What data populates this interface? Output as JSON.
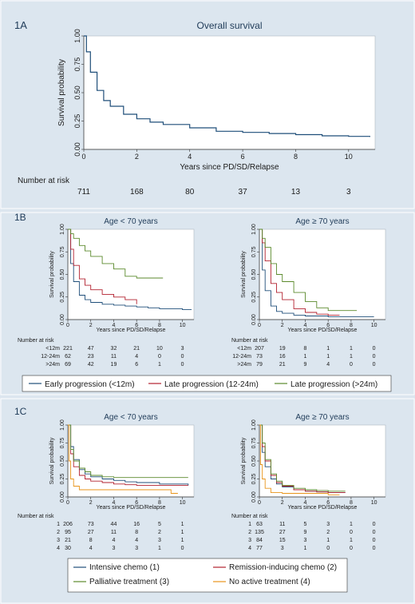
{
  "chart_data": [
    {
      "panel": "1A",
      "type": "line",
      "title": "Overall survival",
      "xlabel": "Years since PD/SD/Relapse",
      "ylabel": "Survival probability",
      "xlim": [
        0,
        11
      ],
      "ylim": [
        0,
        1
      ],
      "xticks": [
        "0",
        "2",
        "4",
        "6",
        "8",
        "10"
      ],
      "yticks": [
        "0.00",
        "0.25",
        "0.50",
        "0.75",
        "1.00"
      ],
      "series": [
        {
          "color": "#1f4e79",
          "x": [
            0,
            0.1,
            0.25,
            0.5,
            0.75,
            1,
            1.5,
            2,
            2.5,
            3,
            4,
            5,
            6,
            7,
            8,
            9,
            10,
            10.8
          ],
          "y": [
            1.0,
            0.86,
            0.68,
            0.52,
            0.43,
            0.38,
            0.31,
            0.27,
            0.24,
            0.22,
            0.19,
            0.16,
            0.15,
            0.14,
            0.13,
            0.12,
            0.115,
            0.11
          ]
        }
      ],
      "risk_table": {
        "label": "Number at risk",
        "rows": [
          {
            "name": "",
            "values": [
              "711",
              "168",
              "80",
              "37",
              "13",
              "3"
            ]
          }
        ]
      }
    },
    {
      "panel": "1B",
      "type": "line",
      "title": "Age < 70 years",
      "xlabel": "Years since PD/SD/Relapse",
      "ylabel": "Survival probability",
      "xlim": [
        0,
        11
      ],
      "ylim": [
        0,
        1
      ],
      "xticks": [
        "0",
        "2",
        "4",
        "6",
        "8",
        "10"
      ],
      "yticks": [
        "0.00",
        "0.25",
        "0.50",
        "0.75",
        "1.00"
      ],
      "series": [
        {
          "color": "#1f4e79",
          "x": [
            0,
            0.25,
            0.5,
            1,
            1.5,
            2,
            3,
            4,
            5,
            6,
            7,
            8,
            9,
            10,
            10.8
          ],
          "y": [
            1.0,
            0.62,
            0.42,
            0.27,
            0.22,
            0.19,
            0.17,
            0.16,
            0.15,
            0.14,
            0.13,
            0.12,
            0.12,
            0.11,
            0.11
          ]
        },
        {
          "color": "#b2202f",
          "x": [
            0,
            0.25,
            0.5,
            1,
            1.5,
            2,
            3,
            4,
            5,
            6
          ],
          "y": [
            1.0,
            0.78,
            0.6,
            0.45,
            0.38,
            0.33,
            0.28,
            0.25,
            0.22,
            0.17
          ]
        },
        {
          "color": "#5b8a2c",
          "x": [
            0,
            0.25,
            0.5,
            1,
            1.5,
            2,
            3,
            4,
            5,
            6,
            7,
            8.3
          ],
          "y": [
            1.0,
            0.95,
            0.9,
            0.82,
            0.76,
            0.7,
            0.62,
            0.56,
            0.48,
            0.46,
            0.46,
            0.46
          ]
        }
      ],
      "risk_table": {
        "label": "Number at risk",
        "rows": [
          {
            "name": "<12m",
            "values": [
              "221",
              "47",
              "32",
              "21",
              "10",
              "3"
            ]
          },
          {
            "name": "12-24m",
            "values": [
              "62",
              "23",
              "11",
              "4",
              "0",
              "0"
            ]
          },
          {
            "name": ">24m",
            "values": [
              "69",
              "42",
              "19",
              "6",
              "1",
              "0"
            ]
          }
        ]
      }
    },
    {
      "panel": "1B",
      "type": "line",
      "title": "Age ≥ 70 years",
      "xlabel": "Years since PD/SD/Relapse",
      "ylabel": "Survival probability",
      "xlim": [
        0,
        11
      ],
      "ylim": [
        0,
        1
      ],
      "xticks": [
        "0",
        "2",
        "4",
        "6",
        "8",
        "10"
      ],
      "yticks": [
        "0.00",
        "0.25",
        "0.50",
        "0.75",
        "1.00"
      ],
      "series": [
        {
          "color": "#1f4e79",
          "x": [
            0,
            0.25,
            0.5,
            1,
            1.5,
            2,
            3,
            4,
            5,
            6,
            8,
            10
          ],
          "y": [
            1.0,
            0.55,
            0.32,
            0.15,
            0.09,
            0.07,
            0.05,
            0.04,
            0.04,
            0.03,
            0.03,
            0.03
          ]
        },
        {
          "color": "#b2202f",
          "x": [
            0,
            0.25,
            0.5,
            1,
            1.5,
            2,
            3,
            4,
            5,
            6,
            7
          ],
          "y": [
            1.0,
            0.85,
            0.65,
            0.4,
            0.3,
            0.22,
            0.12,
            0.08,
            0.06,
            0.05,
            0.05
          ]
        },
        {
          "color": "#5b8a2c",
          "x": [
            0,
            0.25,
            0.5,
            1,
            1.5,
            2,
            3,
            4,
            5,
            6,
            7,
            8.5
          ],
          "y": [
            1.0,
            0.9,
            0.8,
            0.62,
            0.5,
            0.42,
            0.3,
            0.2,
            0.13,
            0.1,
            0.1,
            0.1
          ]
        }
      ],
      "risk_table": {
        "label": "Number at risk",
        "rows": [
          {
            "name": "<12m",
            "values": [
              "207",
              "19",
              "8",
              "1",
              "1",
              "0"
            ]
          },
          {
            "name": "12-24m",
            "values": [
              "73",
              "16",
              "1",
              "1",
              "1",
              "0"
            ]
          },
          {
            "name": ">24m",
            "values": [
              "79",
              "21",
              "9",
              "4",
              "0",
              "0"
            ]
          }
        ]
      }
    },
    {
      "panel": "1C",
      "type": "line",
      "title": "Age < 70 years",
      "xlabel": "Years since PD/SD/Relapse",
      "ylabel": "Survival probability",
      "xlim": [
        0,
        11
      ],
      "ylim": [
        0,
        1
      ],
      "xticks": [
        "0",
        "2",
        "4",
        "6",
        "8",
        "10"
      ],
      "yticks": [
        "0.00",
        "0.25",
        "0.50",
        "0.75",
        "1.00"
      ],
      "series": [
        {
          "color": "#1f4e79",
          "x": [
            0,
            0.25,
            0.5,
            1,
            1.5,
            2,
            3,
            4,
            5,
            6,
            8,
            10.5
          ],
          "y": [
            1.0,
            0.7,
            0.52,
            0.38,
            0.32,
            0.28,
            0.25,
            0.23,
            0.21,
            0.2,
            0.18,
            0.16
          ]
        },
        {
          "color": "#b2202f",
          "x": [
            0,
            0.25,
            0.5,
            1,
            1.5,
            2,
            3,
            4,
            5,
            6,
            8,
            10.5
          ],
          "y": [
            1.0,
            0.6,
            0.42,
            0.3,
            0.25,
            0.22,
            0.2,
            0.18,
            0.17,
            0.16,
            0.16,
            0.16
          ]
        },
        {
          "color": "#5b8a2c",
          "x": [
            0,
            0.25,
            0.5,
            1,
            1.5,
            2,
            3,
            4,
            5,
            6,
            8,
            10.5
          ],
          "y": [
            1.0,
            0.66,
            0.5,
            0.4,
            0.35,
            0.3,
            0.28,
            0.27,
            0.27,
            0.27,
            0.27,
            0.27
          ]
        },
        {
          "color": "#e8941a",
          "x": [
            0,
            0.1,
            0.25,
            0.5,
            1,
            2,
            4,
            6,
            8,
            9,
            9.6
          ],
          "y": [
            1.0,
            0.5,
            0.25,
            0.15,
            0.1,
            0.1,
            0.1,
            0.1,
            0.1,
            0.05,
            0.05
          ]
        }
      ],
      "risk_table": {
        "label": "Number at risk",
        "rows": [
          {
            "name": "1",
            "values": [
              "206",
              "73",
              "44",
              "16",
              "5",
              "1"
            ]
          },
          {
            "name": "2",
            "values": [
              "95",
              "27",
              "11",
              "8",
              "2",
              "1"
            ]
          },
          {
            "name": "3",
            "values": [
              "21",
              "8",
              "4",
              "4",
              "3",
              "1"
            ]
          },
          {
            "name": "4",
            "values": [
              "30",
              "4",
              "3",
              "3",
              "1",
              "0"
            ]
          }
        ]
      }
    },
    {
      "panel": "1C",
      "type": "line",
      "title": "Age ≥ 70 years",
      "xlabel": "Years since PD/SD/Relapse",
      "ylabel": "Survival probability",
      "xlim": [
        0,
        11
      ],
      "ylim": [
        0,
        1
      ],
      "xticks": [
        "0",
        "2",
        "4",
        "6",
        "8",
        "10"
      ],
      "yticks": [
        "0.00",
        "0.25",
        "0.50",
        "0.75",
        "1.00"
      ],
      "series": [
        {
          "color": "#1f4e79",
          "x": [
            0,
            0.25,
            0.5,
            1,
            1.5,
            2,
            3,
            4,
            5,
            6,
            7.5
          ],
          "y": [
            1.0,
            0.62,
            0.42,
            0.25,
            0.18,
            0.14,
            0.1,
            0.08,
            0.07,
            0.06,
            0.06
          ]
        },
        {
          "color": "#b2202f",
          "x": [
            0,
            0.25,
            0.5,
            1,
            1.5,
            2,
            3,
            4,
            5,
            6,
            7.5
          ],
          "y": [
            1.0,
            0.7,
            0.5,
            0.3,
            0.2,
            0.15,
            0.1,
            0.08,
            0.07,
            0.06,
            0.06
          ]
        },
        {
          "color": "#5b8a2c",
          "x": [
            0,
            0.25,
            0.5,
            1,
            1.5,
            2,
            3,
            4,
            5,
            6,
            7.5
          ],
          "y": [
            1.0,
            0.75,
            0.52,
            0.32,
            0.22,
            0.16,
            0.12,
            0.1,
            0.09,
            0.08,
            0.08
          ]
        },
        {
          "color": "#e8941a",
          "x": [
            0,
            0.1,
            0.25,
            0.5,
            1,
            2,
            4,
            6,
            7
          ],
          "y": [
            1.0,
            0.45,
            0.25,
            0.12,
            0.06,
            0.05,
            0.05,
            0.03,
            0.03
          ]
        }
      ],
      "risk_table": {
        "label": "Number at risk",
        "rows": [
          {
            "name": "1",
            "values": [
              "63",
              "11",
              "5",
              "3",
              "1",
              "0"
            ]
          },
          {
            "name": "2",
            "values": [
              "135",
              "27",
              "9",
              "2",
              "0",
              "0"
            ]
          },
          {
            "name": "3",
            "values": [
              "84",
              "15",
              "3",
              "1",
              "1",
              "0"
            ]
          },
          {
            "name": "4",
            "values": [
              "77",
              "3",
              "1",
              "0",
              "0",
              "0"
            ]
          }
        ]
      }
    }
  ],
  "panels": {
    "a": "1A",
    "b": "1B",
    "c": "1C"
  },
  "legend_b": [
    {
      "label": "Early progression (<12m)",
      "color": "#1f4e79"
    },
    {
      "label": "Late progression (12-24m)",
      "color": "#b2202f"
    },
    {
      "label": "Late progression (>24m)",
      "color": "#5b8a2c"
    }
  ],
  "legend_c": [
    {
      "label": "Intensive chemo (1)",
      "color": "#1f4e79"
    },
    {
      "label": "Remission-inducing chemo (2)",
      "color": "#b2202f"
    },
    {
      "label": "Palliative treatment (3)",
      "color": "#5b8a2c"
    },
    {
      "label": "No active treatment (4)",
      "color": "#e8941a"
    }
  ]
}
